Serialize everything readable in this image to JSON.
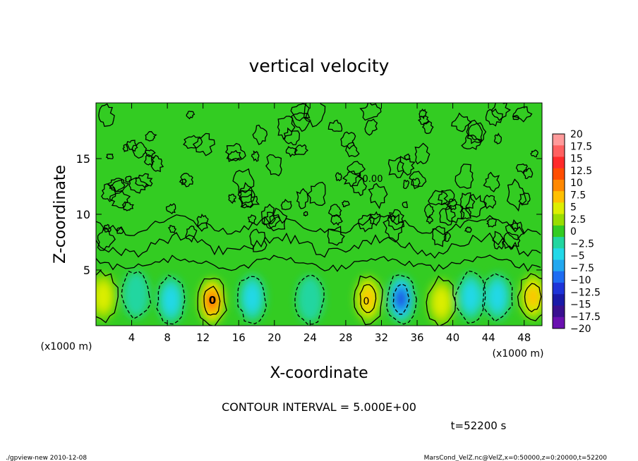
{
  "chart_data": {
    "type": "heatmap",
    "title": "vertical velocity",
    "xlabel": "X-coordinate",
    "ylabel": "Z-coordinate",
    "x_unit": "(x1000 m)",
    "y_unit": "(x1000 m)",
    "xlim": [
      0,
      50
    ],
    "ylim": [
      0,
      20
    ],
    "x_ticks": [
      "4",
      "8",
      "12",
      "16",
      "20",
      "24",
      "28",
      "32",
      "36",
      "40",
      "44",
      "48"
    ],
    "y_ticks": [
      "5",
      "10",
      "15"
    ],
    "contour_interval_text": "CONTOUR INTERVAL = 5.000E+00",
    "time_label": "t=52200 s",
    "contour_labels": [
      "0",
      "0",
      "0.00"
    ],
    "colorbar": {
      "min": -20,
      "max": 20,
      "levels": [
        "20",
        "17.5",
        "15",
        "12.5",
        "10",
        "7.5",
        "5",
        "2.5",
        "0",
        "−2.5",
        "−5",
        "−7.5",
        "−10",
        "−12.5",
        "−15",
        "−17.5",
        "−20"
      ],
      "colors": [
        "#ff9a9a",
        "#ff6060",
        "#ff2a2a",
        "#ff4d00",
        "#ff8800",
        "#ffc000",
        "#ddee00",
        "#99dd00",
        "#33cc22",
        "#22d6a0",
        "#22d8e8",
        "#22a8f0",
        "#1e6cf2",
        "#1e34d8",
        "#1a1aa8",
        "#3a1090",
        "#6a10b0"
      ]
    },
    "features": [
      {
        "x": 13.0,
        "z": 2.2,
        "value": 12
      },
      {
        "x": 30.5,
        "z": 2.4,
        "value": 8
      },
      {
        "x": 49.0,
        "z": 2.6,
        "value": 8
      },
      {
        "x": 0.8,
        "z": 2.6,
        "value": 6
      },
      {
        "x": 38.7,
        "z": 2.1,
        "value": 5
      },
      {
        "x": 34.2,
        "z": 2.4,
        "value": -13
      },
      {
        "x": 8.4,
        "z": 2.3,
        "value": -6
      },
      {
        "x": 17.5,
        "z": 2.5,
        "value": -4
      },
      {
        "x": 45.0,
        "z": 2.6,
        "value": -6
      },
      {
        "x": 4.5,
        "z": 2.8,
        "value": -3
      },
      {
        "x": 24.0,
        "z": 2.4,
        "value": -3
      },
      {
        "x": 42.0,
        "z": 2.6,
        "value": -4
      }
    ]
  },
  "footer": {
    "left": "./gpview-new  2010-12-08",
    "right": "MarsCond_VelZ.nc@VelZ,x=0:50000,z=0:20000,t=52200"
  }
}
